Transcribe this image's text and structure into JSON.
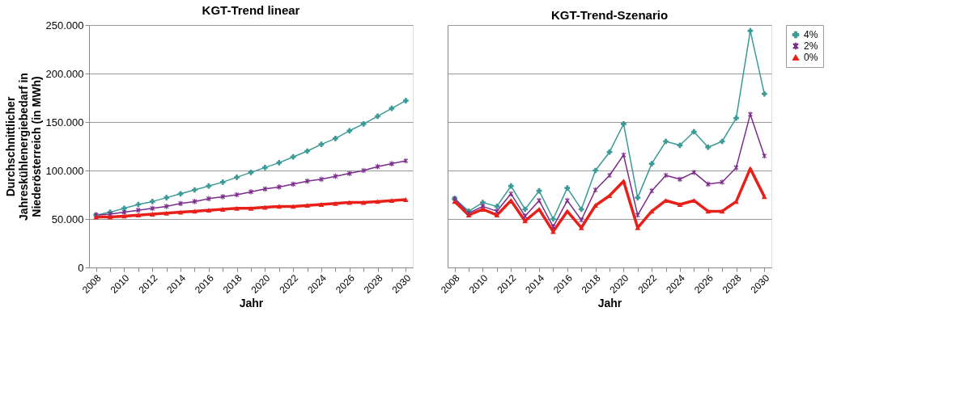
{
  "chart_data": [
    {
      "type": "line",
      "title": "KGT-Trend linear",
      "xlabel": "Jahr",
      "ylabel": "Durchschnittlicher Jahreskühlenergiebedarf in Niederösterreich (in MWh)",
      "categories": [
        "2008",
        null,
        "2010",
        null,
        "2012",
        null,
        "2014",
        null,
        "2016",
        null,
        "2018",
        null,
        "2020",
        null,
        "2022",
        null,
        "2024",
        null,
        "2026",
        null,
        "2028",
        null,
        "2030"
      ],
      "ylim": [
        0,
        250000
      ],
      "yticks": [
        {
          "value": 0,
          "label": "0"
        },
        {
          "value": 50000,
          "label": "50.000"
        },
        {
          "value": 100000,
          "label": "100.000"
        },
        {
          "value": 150000,
          "label": "150.000"
        },
        {
          "value": 200000,
          "label": "200.000"
        },
        {
          "value": 250000,
          "label": "250.000"
        }
      ],
      "grid": "y",
      "line_style": "solid",
      "series": [
        {
          "color": "#3a9a96",
          "marker": "cross",
          "values": [
            54000,
            57000,
            61000,
            65000,
            68000,
            72000,
            76000,
            80000,
            84000,
            88000,
            93000,
            98000,
            103000,
            108000,
            114000,
            120000,
            127000,
            133000,
            141000,
            148000,
            156000,
            164000,
            172000
          ]
        },
        {
          "color": "#7b2c8a",
          "marker": "star",
          "values": [
            54000,
            55000,
            57000,
            59000,
            61000,
            63000,
            66000,
            68000,
            71000,
            73000,
            75000,
            78000,
            81000,
            83000,
            86000,
            89000,
            91000,
            94000,
            97000,
            100000,
            104000,
            107000,
            110000
          ]
        },
        {
          "color": "#e8201a",
          "marker": "triangle",
          "values": [
            52000,
            52000,
            53000,
            54000,
            55000,
            56000,
            57000,
            58000,
            59000,
            60000,
            61000,
            61000,
            62000,
            63000,
            63000,
            64000,
            65000,
            66000,
            67000,
            67000,
            68000,
            69000,
            70000
          ]
        }
      ]
    },
    {
      "type": "line",
      "title": "KGT-Trend-Szenario",
      "xlabel": "Jahr",
      "categories": [
        "2008",
        null,
        "2010",
        null,
        "2012",
        null,
        "2014",
        null,
        "2016",
        null,
        "2018",
        null,
        "2020",
        null,
        "2022",
        null,
        "2024",
        null,
        "2026",
        null,
        "2028",
        null,
        "2030"
      ],
      "ylim": [
        0,
        250000
      ],
      "yticks": [
        0,
        50000,
        100000,
        150000,
        200000,
        250000
      ],
      "tick_labels": "x",
      "grid": "y",
      "legend": "right",
      "line_style": "solid",
      "series": [
        {
          "name": "4%",
          "color": "#3a9a96",
          "marker": "cross",
          "values": [
            71000,
            58000,
            67000,
            63000,
            84000,
            60000,
            79000,
            50000,
            82000,
            60000,
            100000,
            119000,
            148000,
            72000,
            107000,
            130000,
            126000,
            140000,
            124000,
            130000,
            154000,
            244000,
            179000
          ]
        },
        {
          "name": "2%",
          "color": "#7b2c8a",
          "marker": "star",
          "values": [
            71000,
            56000,
            63000,
            58000,
            76000,
            53000,
            69000,
            42000,
            69000,
            49000,
            80000,
            95000,
            116000,
            54000,
            79000,
            95000,
            91000,
            98000,
            86000,
            88000,
            103000,
            158000,
            115000
          ]
        },
        {
          "name": "0%",
          "color": "#e8201a",
          "marker": "triangle",
          "values": [
            68000,
            54000,
            60000,
            54000,
            69000,
            48000,
            60000,
            37000,
            58000,
            41000,
            64000,
            74000,
            89000,
            41000,
            58000,
            69000,
            65000,
            69000,
            58000,
            58000,
            68000,
            102000,
            73000
          ]
        }
      ]
    }
  ]
}
